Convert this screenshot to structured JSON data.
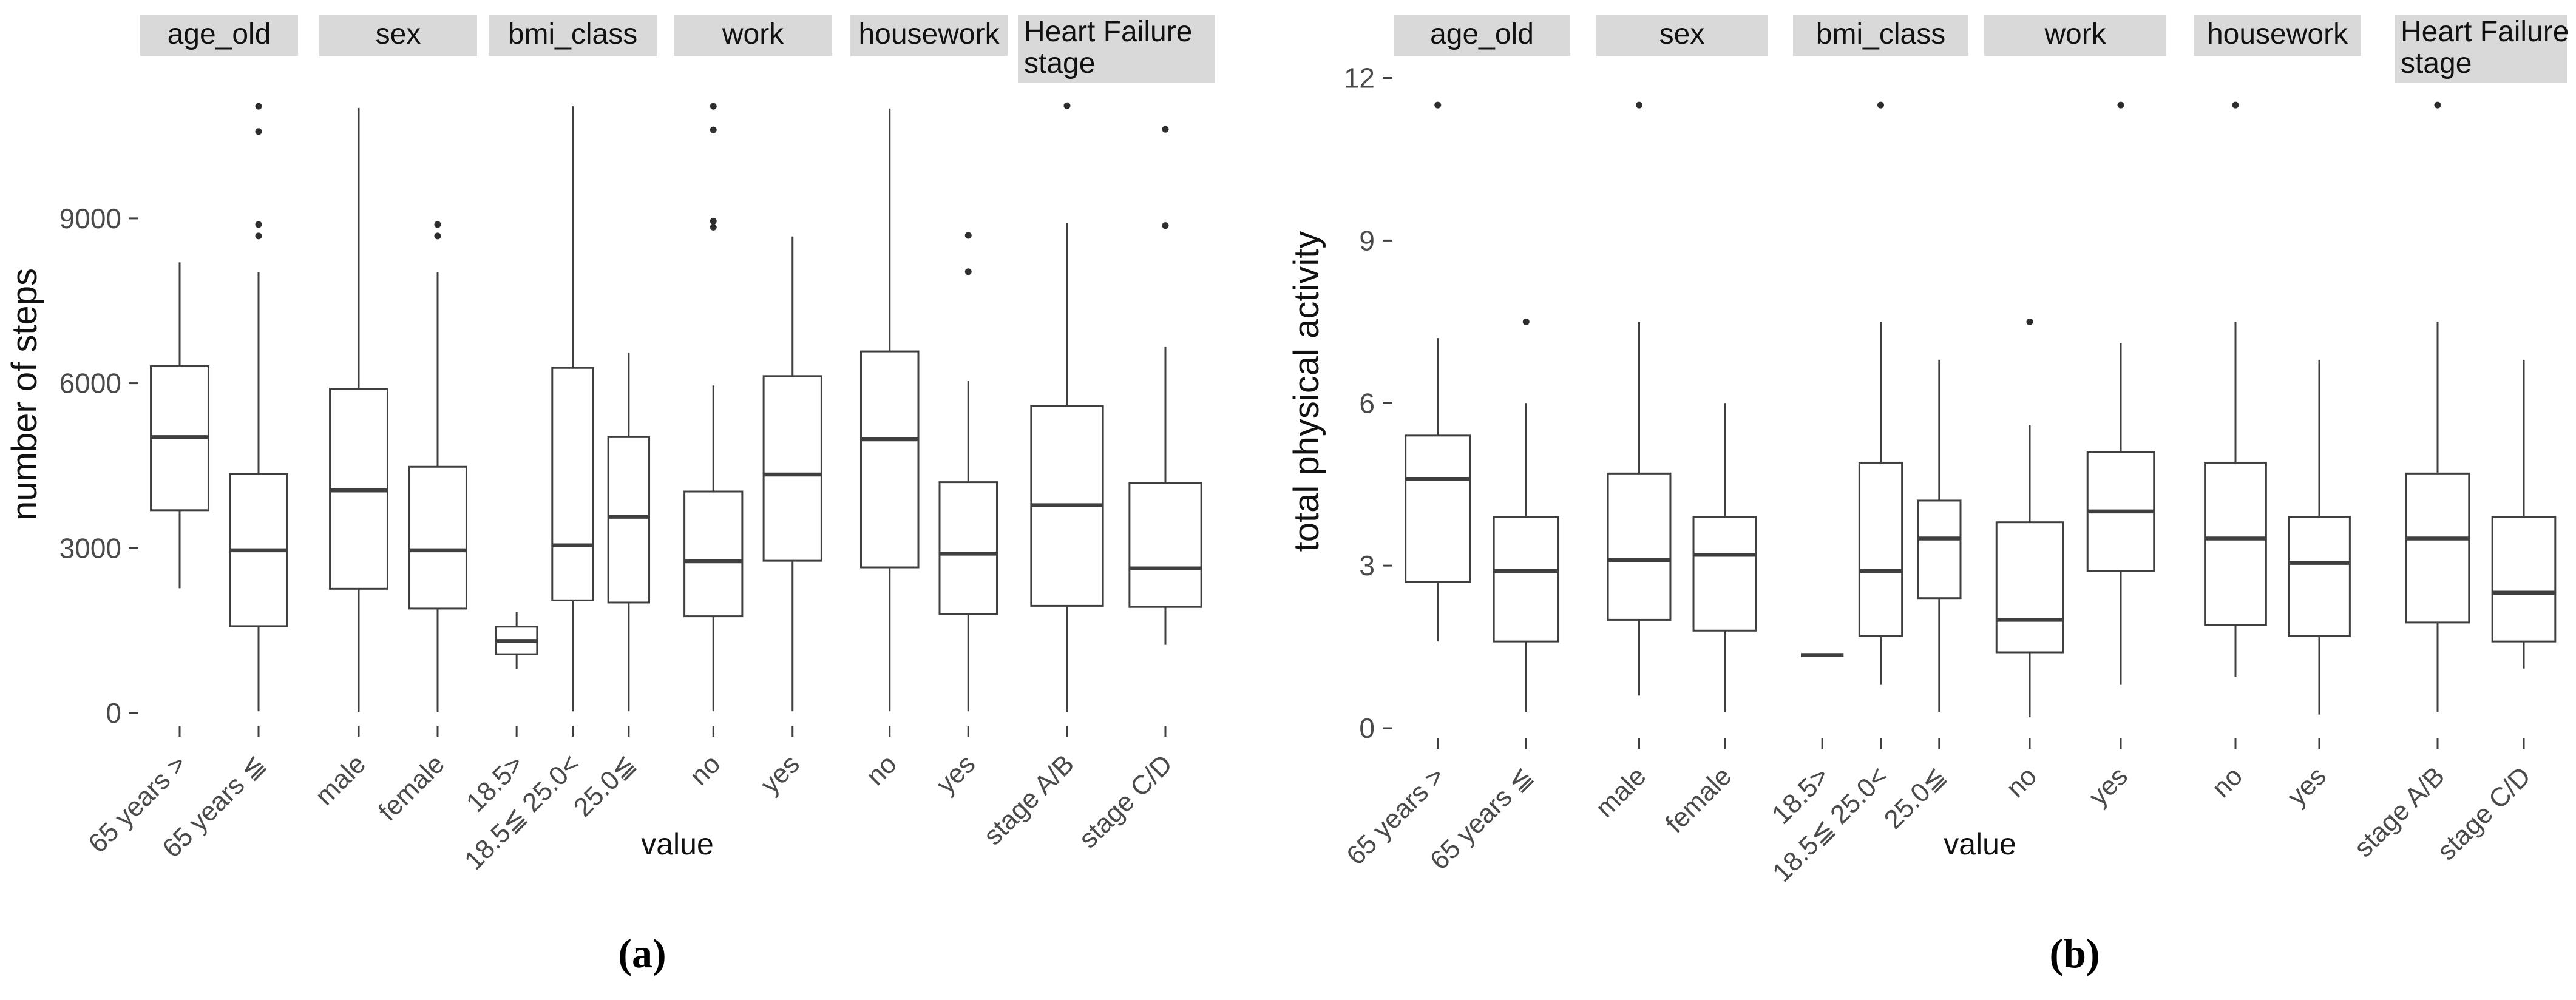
{
  "figure": {
    "background": "#ffffff",
    "description": "Two faceted box plot panels comparing distributions across clinical subgroups"
  },
  "style": {
    "strip_bg": "#d9d9d9",
    "stroke": "#3f3f3f",
    "tick_text": "#4a4a4a",
    "text": "#111111",
    "outlier_fill": "#2e2e2e",
    "background": "#ffffff"
  },
  "chart_data": [
    {
      "type": "boxplot",
      "id": "a",
      "caption": "(a)",
      "ylabel": "number of steps",
      "xlabel": "value",
      "yticks": [
        0,
        3000,
        6000,
        9000
      ],
      "ylim": [
        0,
        11800
      ],
      "grid": false,
      "legend": "none",
      "facets": [
        {
          "label": "age_old",
          "categories": [
            "65 years >",
            "65 years ≦"
          ],
          "boxes": [
            {
              "min": 2270,
              "q1": 3690,
              "med": 5020,
              "q3": 6310,
              "max": 8200,
              "outliers": []
            },
            {
              "min": 30,
              "q1": 1580,
              "med": 2960,
              "q3": 4350,
              "max": 8020,
              "outliers": [
                8680,
                8890,
                10580,
                11040
              ]
            }
          ]
        },
        {
          "label": "sex",
          "categories": [
            "male",
            "female"
          ],
          "boxes": [
            {
              "min": 20,
              "q1": 2260,
              "med": 4050,
              "q3": 5900,
              "max": 11010,
              "outliers": []
            },
            {
              "min": 20,
              "q1": 1900,
              "med": 2960,
              "q3": 4480,
              "max": 8020,
              "outliers": [
                8680,
                8890
              ]
            }
          ]
        },
        {
          "label": "bmi_class",
          "categories": [
            "18.5>",
            "18.5≦ 25.0<",
            "25.0≦"
          ],
          "boxes": [
            {
              "min": 800,
              "q1": 1070,
              "med": 1310,
              "q3": 1570,
              "max": 1840,
              "outliers": []
            },
            {
              "min": 30,
              "q1": 2050,
              "med": 3050,
              "q3": 6280,
              "max": 11040,
              "outliers": []
            },
            {
              "min": 30,
              "q1": 2010,
              "med": 3570,
              "q3": 5020,
              "max": 6560,
              "outliers": []
            }
          ]
        },
        {
          "label": "work",
          "categories": [
            "no",
            "yes"
          ],
          "boxes": [
            {
              "min": 30,
              "q1": 1760,
              "med": 2760,
              "q3": 4030,
              "max": 5960,
              "outliers": [
                8840,
                8950,
                10610,
                11040
              ]
            },
            {
              "min": 30,
              "q1": 2770,
              "med": 4340,
              "q3": 6130,
              "max": 8670,
              "outliers": []
            }
          ]
        },
        {
          "label": "housework",
          "categories": [
            "no",
            "yes"
          ],
          "boxes": [
            {
              "min": 30,
              "q1": 2650,
              "med": 4980,
              "q3": 6580,
              "max": 11000,
              "outliers": []
            },
            {
              "min": 30,
              "q1": 1800,
              "med": 2900,
              "q3": 4200,
              "max": 6040,
              "outliers": [
                8030,
                8690
              ]
            }
          ]
        },
        {
          "label": "Heart Failure stage",
          "label_lines": [
            "Heart Failure",
            "stage"
          ],
          "categories": [
            "stage A/B",
            "stage C/D"
          ],
          "boxes": [
            {
              "min": 20,
              "q1": 1950,
              "med": 3780,
              "q3": 5590,
              "max": 8910,
              "outliers": [
                11050
              ]
            },
            {
              "min": 1240,
              "q1": 1930,
              "med": 2630,
              "q3": 4180,
              "max": 6660,
              "outliers": [
                8870,
                10620
              ]
            }
          ]
        }
      ]
    },
    {
      "type": "boxplot",
      "id": "b",
      "caption": "(b)",
      "ylabel": "total physical activity",
      "xlabel": "value",
      "yticks": [
        0,
        3,
        6,
        9,
        12
      ],
      "ylim": [
        0,
        12
      ],
      "grid": false,
      "legend": "none",
      "facets": [
        {
          "label": "age_old",
          "categories": [
            "65 years >",
            "65 years ≦"
          ],
          "boxes": [
            {
              "min": 1.6,
              "q1": 2.7,
              "med": 4.6,
              "q3": 5.4,
              "max": 7.2,
              "outliers": [
                11.5
              ]
            },
            {
              "min": 0.3,
              "q1": 1.6,
              "med": 2.9,
              "q3": 3.9,
              "max": 6.0,
              "outliers": [
                7.5
              ]
            }
          ]
        },
        {
          "label": "sex",
          "categories": [
            "male",
            "female"
          ],
          "boxes": [
            {
              "min": 0.6,
              "q1": 2.0,
              "med": 3.1,
              "q3": 4.7,
              "max": 7.5,
              "outliers": [
                11.5
              ]
            },
            {
              "min": 0.3,
              "q1": 1.8,
              "med": 3.2,
              "q3": 3.9,
              "max": 6.0,
              "outliers": []
            }
          ]
        },
        {
          "label": "bmi_class",
          "categories": [
            "18.5>",
            "18.5≦ 25.0<",
            "25.0≦"
          ],
          "boxes": [
            {
              "min": 1.35,
              "q1": 1.35,
              "med": 1.35,
              "q3": 1.35,
              "max": 1.35,
              "outliers": []
            },
            {
              "min": 0.8,
              "q1": 1.7,
              "med": 2.9,
              "q3": 4.9,
              "max": 7.5,
              "outliers": [
                11.5
              ]
            },
            {
              "min": 0.3,
              "q1": 2.4,
              "med": 3.5,
              "q3": 4.2,
              "max": 6.8,
              "outliers": []
            }
          ]
        },
        {
          "label": "work",
          "categories": [
            "no",
            "yes"
          ],
          "boxes": [
            {
              "min": 0.2,
              "q1": 1.4,
              "med": 2.0,
              "q3": 3.8,
              "max": 5.6,
              "outliers": [
                7.5
              ]
            },
            {
              "min": 0.8,
              "q1": 2.9,
              "med": 4.0,
              "q3": 5.1,
              "max": 7.1,
              "outliers": [
                11.5
              ]
            }
          ]
        },
        {
          "label": "housework",
          "categories": [
            "no",
            "yes"
          ],
          "boxes": [
            {
              "min": 0.95,
              "q1": 1.9,
              "med": 3.5,
              "q3": 4.9,
              "max": 7.5,
              "outliers": [
                11.5
              ]
            },
            {
              "min": 0.25,
              "q1": 1.7,
              "med": 3.05,
              "q3": 3.9,
              "max": 6.8,
              "outliers": []
            }
          ]
        },
        {
          "label": "Heart Failure stage",
          "label_lines": [
            "Heart Failure",
            "stage"
          ],
          "categories": [
            "stage A/B",
            "stage C/D"
          ],
          "boxes": [
            {
              "min": 0.3,
              "q1": 1.95,
              "med": 3.5,
              "q3": 4.7,
              "max": 7.5,
              "outliers": [
                11.5
              ]
            },
            {
              "min": 1.1,
              "q1": 1.6,
              "med": 2.5,
              "q3": 3.9,
              "max": 6.8,
              "outliers": []
            }
          ]
        }
      ]
    }
  ]
}
